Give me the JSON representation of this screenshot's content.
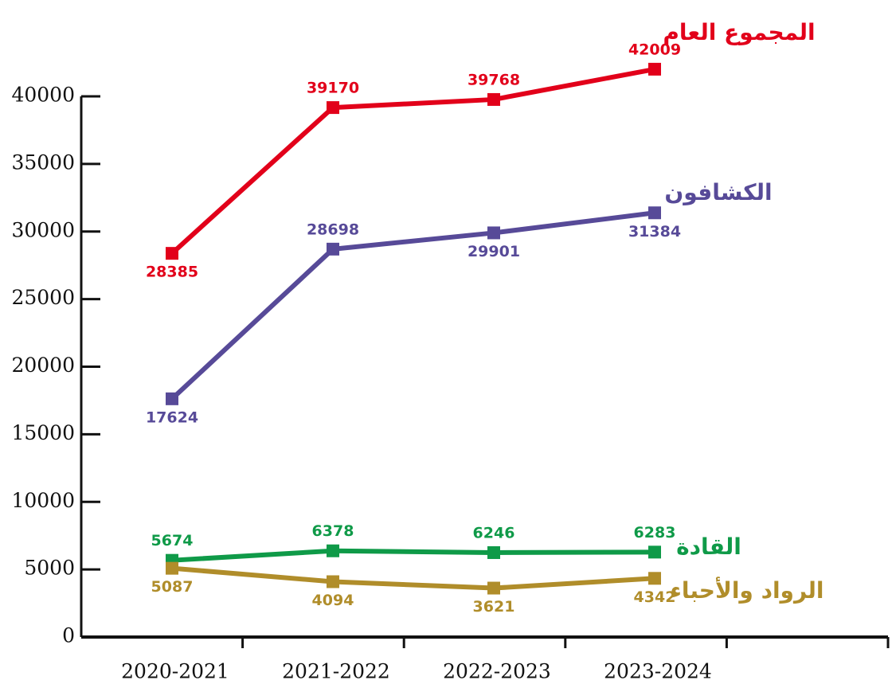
{
  "chart_data": {
    "type": "line",
    "categories": [
      "2020-2021",
      "2021-2022",
      "2022-2023",
      "2023-2024"
    ],
    "series": [
      {
        "name": "المجموع العام",
        "color": "#e2001a",
        "values": [
          28385,
          39170,
          39768,
          42009
        ]
      },
      {
        "name": "الكشافون",
        "color": "#574a98",
        "values": [
          17624,
          28698,
          29901,
          31384
        ]
      },
      {
        "name": "القادة",
        "color": "#0f9a48",
        "values": [
          5674,
          6378,
          6246,
          6283
        ]
      },
      {
        "name": "الرواد والأحباء",
        "color": "#b08d2a",
        "values": [
          5087,
          4094,
          3621,
          4342
        ]
      }
    ],
    "ylim": [
      0,
      40000
    ],
    "yticks": [
      0,
      5000,
      10000,
      15000,
      20000,
      25000,
      30000,
      35000,
      40000
    ]
  }
}
